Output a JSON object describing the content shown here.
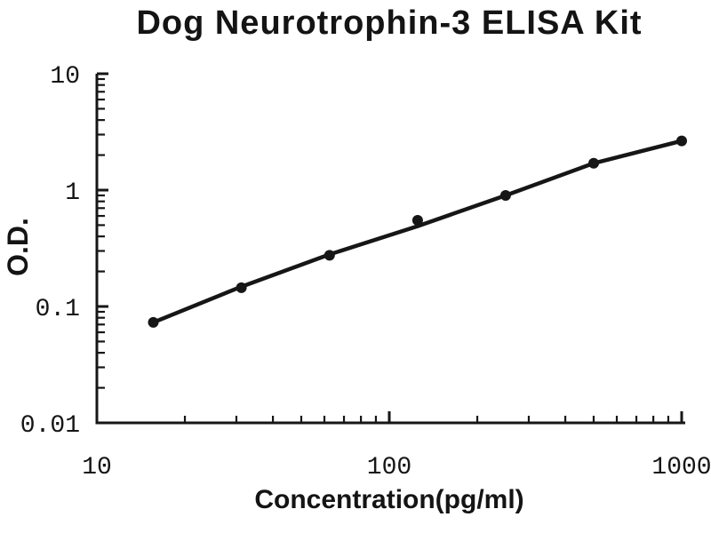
{
  "page": {
    "background": "#ffffff"
  },
  "colors": {
    "ink": "#161616"
  },
  "chart_data": {
    "type": "line",
    "title": "Dog Neurotrophin-3 ELISA Kit",
    "xlabel": "Concentration(pg/ml)",
    "ylabel": "O.D.",
    "x_scale": "log",
    "y_scale": "log",
    "xlim": [
      10,
      1000
    ],
    "ylim": [
      0.01,
      10
    ],
    "grid": false,
    "legend": false,
    "x_ticks": [
      {
        "value": 10,
        "label": "10"
      },
      {
        "value": 100,
        "label": "100"
      },
      {
        "value": 1000,
        "label": "1000"
      }
    ],
    "y_ticks": [
      {
        "value": 0.01,
        "label": "0.01"
      },
      {
        "value": 0.1,
        "label": "0.1"
      },
      {
        "value": 1,
        "label": "1"
      },
      {
        "value": 10,
        "label": "10"
      }
    ],
    "series": [
      {
        "name": "standard curve",
        "marker": "circle",
        "color": "#161616",
        "x": [
          15.6,
          31.2,
          62.5,
          125,
          250,
          500,
          1000
        ],
        "y": [
          0.073,
          0.145,
          0.275,
          0.55,
          0.9,
          1.7,
          2.65
        ]
      }
    ],
    "trend_line": {
      "x": [
        15.6,
        31.2,
        62.5,
        125,
        250,
        500,
        1000
      ],
      "y": [
        0.073,
        0.148,
        0.28,
        0.49,
        0.9,
        1.7,
        2.65
      ]
    }
  }
}
